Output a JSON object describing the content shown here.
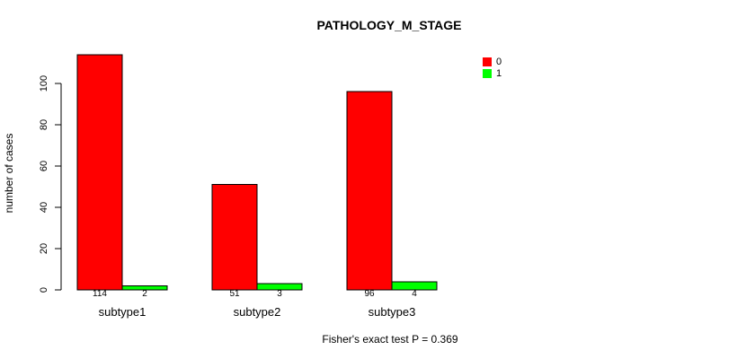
{
  "chart_data": {
    "type": "bar",
    "title": "PATHOLOGY_M_STAGE",
    "xlabel": "",
    "ylabel": "number of cases",
    "categories": [
      "subtype1",
      "subtype2",
      "subtype3"
    ],
    "series": [
      {
        "name": "0",
        "color": "#ff0000",
        "values": [
          114,
          51,
          96
        ]
      },
      {
        "name": "1",
        "color": "#00ff00",
        "values": [
          2,
          3,
          4
        ]
      }
    ],
    "ylim": [
      0,
      100
    ],
    "yticks": [
      0,
      20,
      40,
      60,
      80,
      100
    ],
    "grid": false,
    "legend_position": "top-right",
    "bar_value_labels": [
      [
        114,
        2
      ],
      [
        51,
        3
      ],
      [
        96,
        4
      ]
    ],
    "annotation": "Fisher's exact test P = 0.369"
  },
  "colors": {
    "series_0": "#ff0000",
    "series_1": "#00ff00",
    "axis": "#000000",
    "background": "#ffffff"
  }
}
